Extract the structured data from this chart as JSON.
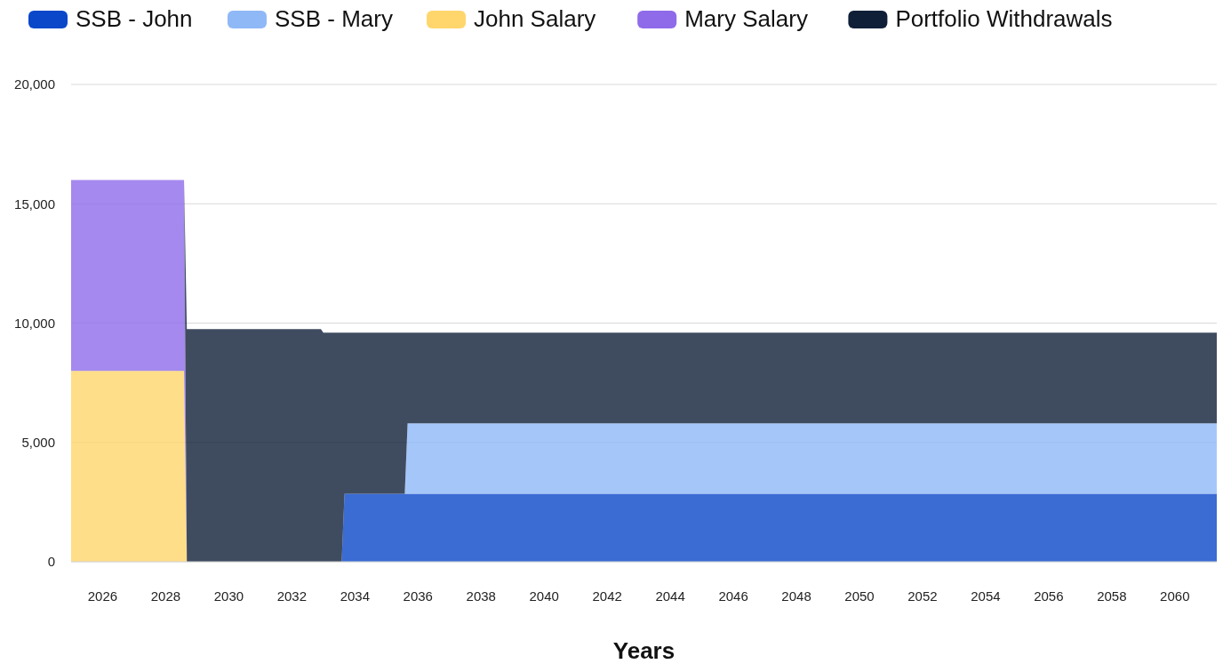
{
  "chart_data": {
    "type": "area",
    "stacked": true,
    "xlabel": "Years",
    "x": [
      2025,
      2028.58,
      2028.67,
      2032.92,
      2033.0,
      2033.58,
      2033.67,
      2035.58,
      2035.67,
      2061.33
    ],
    "series": [
      {
        "name": "SSB - John",
        "color": "#0a47c9",
        "values": [
          0,
          0,
          0,
          0,
          0,
          0,
          2850,
          2850,
          2850,
          2850
        ]
      },
      {
        "name": "SSB - Mary",
        "color": "#8fb8f7",
        "values": [
          0,
          0,
          0,
          0,
          0,
          0,
          0,
          0,
          2950,
          2950
        ]
      },
      {
        "name": "John Salary",
        "color": "#ffd66b",
        "values": [
          8000,
          8000,
          0,
          0,
          0,
          0,
          0,
          0,
          0,
          0
        ]
      },
      {
        "name": "Mary Salary",
        "color": "#8f6bea",
        "values": [
          8000,
          8000,
          0,
          0,
          0,
          0,
          0,
          0,
          0,
          0
        ]
      },
      {
        "name": "Portfolio Withdrawals",
        "color": "#0f1f38",
        "values": [
          null,
          0,
          9750,
          9750,
          9600,
          9600,
          6750,
          6750,
          3800,
          3800
        ]
      }
    ],
    "xlim": [
      2025,
      2061.33
    ],
    "xticks": [
      2026,
      2028,
      2030,
      2032,
      2034,
      2036,
      2038,
      2040,
      2042,
      2044,
      2046,
      2048,
      2050,
      2052,
      2054,
      2056,
      2058,
      2060
    ],
    "ylim": [
      0,
      20000
    ],
    "yticks": [
      {
        "value": 0,
        "label": "0"
      },
      {
        "value": 5000,
        "label": "5,000"
      },
      {
        "value": 10000,
        "label": "10,000"
      },
      {
        "value": 15000,
        "label": "15,000"
      },
      {
        "value": 20000,
        "label": "20,000"
      }
    ],
    "grid": "y",
    "legend": "top"
  }
}
